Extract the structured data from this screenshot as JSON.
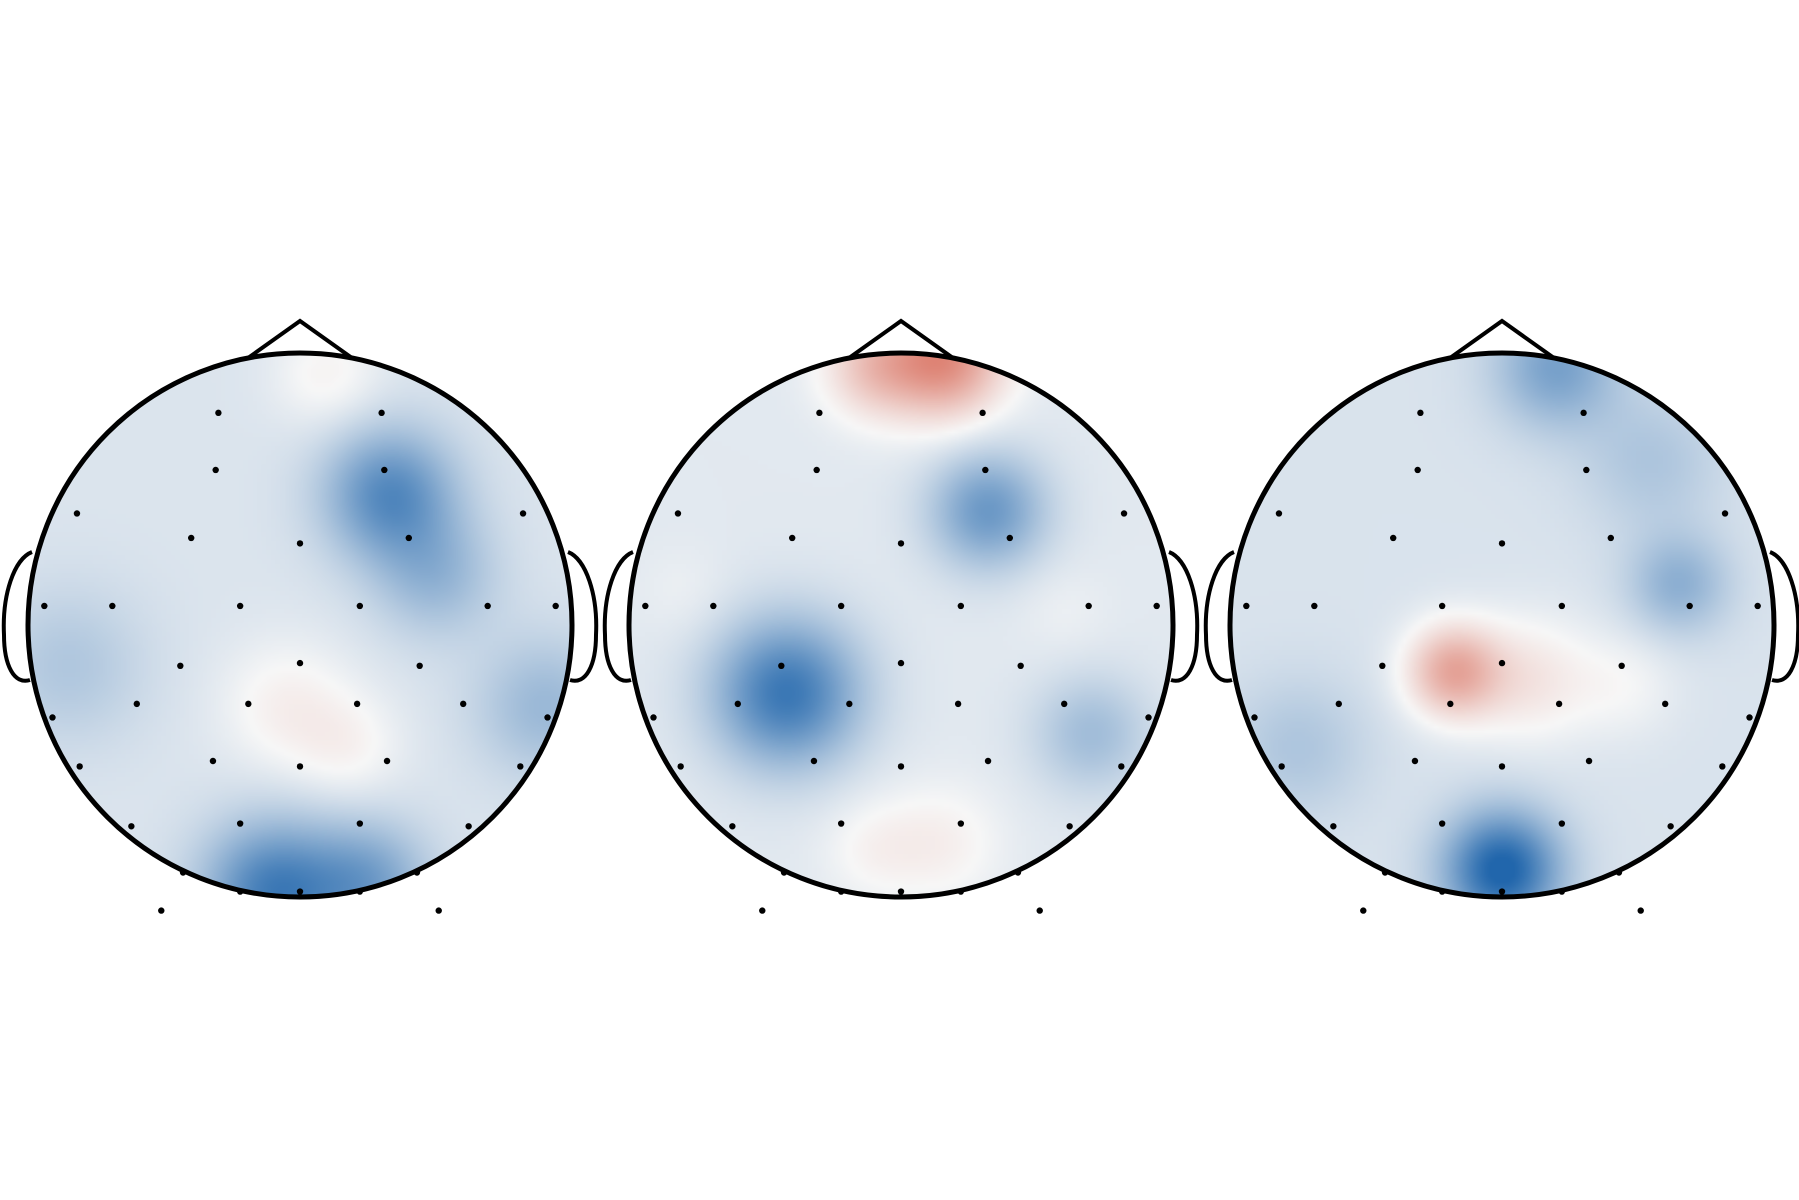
{
  "figure": {
    "type": "eeg-topomap-row",
    "map_count": 3,
    "colormap": {
      "negative": "#2166ac",
      "neutral": "#f7f7f7",
      "positive": "#d6604d",
      "name": "RdBu_r"
    },
    "outline_color": "#000000",
    "sensor_color": "#000000",
    "background_color": "#ffffff"
  },
  "topomaps": [
    {
      "id": "map-1",
      "hotspots": [
        {
          "u": 0.33,
          "v": -0.48,
          "amp": -0.62,
          "sigma": 0.17
        },
        {
          "u": 0.5,
          "v": -0.18,
          "amp": -0.3,
          "sigma": 0.16
        },
        {
          "u": -0.05,
          "v": 0.3,
          "amp": 0.18,
          "sigma": 0.17
        },
        {
          "u": 0.18,
          "v": 0.45,
          "amp": 0.14,
          "sigma": 0.14
        },
        {
          "u": 0.1,
          "v": -0.92,
          "amp": 0.16,
          "sigma": 0.14
        },
        {
          "u": -0.1,
          "v": 0.98,
          "amp": -0.7,
          "sigma": 0.18
        },
        {
          "u": 0.25,
          "v": 0.95,
          "amp": -0.45,
          "sigma": 0.16
        },
        {
          "u": -0.85,
          "v": 0.15,
          "amp": -0.2,
          "sigma": 0.2
        },
        {
          "u": 0.9,
          "v": 0.3,
          "amp": -0.3,
          "sigma": 0.18
        }
      ],
      "baseline": -0.13
    },
    {
      "id": "map-2",
      "hotspots": [
        {
          "u": 0.16,
          "v": -0.98,
          "amp": 0.8,
          "sigma": 0.15
        },
        {
          "u": -0.1,
          "v": -0.95,
          "amp": 0.4,
          "sigma": 0.13
        },
        {
          "u": 0.32,
          "v": -0.42,
          "amp": -0.55,
          "sigma": 0.15
        },
        {
          "u": -0.42,
          "v": 0.25,
          "amp": -0.78,
          "sigma": 0.19
        },
        {
          "u": 0.15,
          "v": 0.8,
          "amp": 0.15,
          "sigma": 0.15
        },
        {
          "u": -0.1,
          "v": 0.82,
          "amp": 0.12,
          "sigma": 0.13
        },
        {
          "u": 0.6,
          "v": -0.05,
          "amp": 0.05,
          "sigma": 0.12
        },
        {
          "u": 0.7,
          "v": 0.4,
          "amp": -0.3,
          "sigma": 0.15
        },
        {
          "u": -0.8,
          "v": -0.12,
          "amp": 0.05,
          "sigma": 0.12
        }
      ],
      "baseline": -0.1
    },
    {
      "id": "map-3",
      "hotspots": [
        {
          "u": -0.18,
          "v": 0.17,
          "amp": 0.65,
          "sigma": 0.12
        },
        {
          "u": 0.1,
          "v": 0.2,
          "amp": 0.25,
          "sigma": 0.16
        },
        {
          "u": 0.45,
          "v": 0.22,
          "amp": 0.12,
          "sigma": 0.14
        },
        {
          "u": 0.0,
          "v": 0.9,
          "amp": -0.9,
          "sigma": 0.15
        },
        {
          "u": 0.2,
          "v": -0.95,
          "amp": -0.45,
          "sigma": 0.16
        },
        {
          "u": 0.65,
          "v": -0.15,
          "amp": -0.35,
          "sigma": 0.13
        },
        {
          "u": 0.55,
          "v": -0.6,
          "amp": -0.2,
          "sigma": 0.18
        },
        {
          "u": -0.75,
          "v": 0.45,
          "amp": -0.2,
          "sigma": 0.18
        }
      ],
      "baseline": -0.14
    }
  ],
  "sensors": [
    [
      -0.3,
      -0.78
    ],
    [
      0.3,
      -0.78
    ],
    [
      -0.31,
      -0.57
    ],
    [
      0.31,
      -0.57
    ],
    [
      -0.82,
      -0.41
    ],
    [
      -0.4,
      -0.32
    ],
    [
      0.0,
      -0.3
    ],
    [
      0.4,
      -0.32
    ],
    [
      0.82,
      -0.41
    ],
    [
      -0.94,
      -0.07
    ],
    [
      -0.69,
      -0.07
    ],
    [
      -0.22,
      -0.07
    ],
    [
      0.22,
      -0.07
    ],
    [
      0.69,
      -0.07
    ],
    [
      0.94,
      -0.07
    ],
    [
      -0.44,
      0.15
    ],
    [
      0.0,
      0.14
    ],
    [
      0.44,
      0.15
    ],
    [
      -0.91,
      0.34
    ],
    [
      -0.6,
      0.29
    ],
    [
      -0.19,
      0.29
    ],
    [
      0.21,
      0.29
    ],
    [
      0.6,
      0.29
    ],
    [
      0.91,
      0.34
    ],
    [
      -0.81,
      0.52
    ],
    [
      -0.32,
      0.5
    ],
    [
      0.0,
      0.52
    ],
    [
      0.32,
      0.5
    ],
    [
      0.81,
      0.52
    ],
    [
      -0.62,
      0.74
    ],
    [
      -0.22,
      0.73
    ],
    [
      0.22,
      0.73
    ],
    [
      0.62,
      0.74
    ],
    [
      -0.43,
      0.91
    ],
    [
      -0.22,
      0.98
    ],
    [
      0.0,
      0.98
    ],
    [
      0.22,
      0.98
    ],
    [
      0.43,
      0.91
    ],
    [
      -0.51,
      1.05
    ],
    [
      0.51,
      1.05
    ]
  ]
}
